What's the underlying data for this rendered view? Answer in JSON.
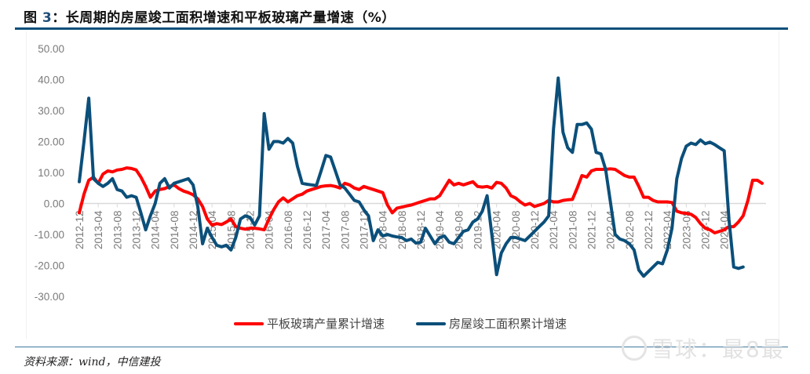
{
  "title": {
    "prefix": "图",
    "number": "3",
    "text": "：长周期的房屋竣工面积增速和平板玻璃产量增速（%）"
  },
  "source": "资料来源：wind，中信建投",
  "watermark": "雪球：最8最",
  "colors": {
    "glass": "#ff0000",
    "housing": "#0b4f7a",
    "title_rule": "#0b4f7a",
    "axis_text": "#7a7a7a",
    "zero_line": "#d9d9d9"
  },
  "legend": [
    {
      "label": "平板玻璃产量累计增速",
      "color": "#ff0000"
    },
    {
      "label": "房屋竣工面积累计增速",
      "color": "#0b4f7a"
    }
  ],
  "chart_data": {
    "type": "line",
    "title": "长周期的房屋竣工面积增速和平板玻璃产量增速（%）",
    "xlabel": "",
    "ylabel": "%",
    "ylim": [
      -30,
      50
    ],
    "yticks": [
      "50.00",
      "40.00",
      "30.00",
      "20.00",
      "10.00",
      "0.00",
      "-10.00",
      "-20.00",
      "-30.00"
    ],
    "xtick_labels": [
      "2012-12",
      "2013-04",
      "2013-08",
      "2013-12",
      "2014-04",
      "2014-08",
      "2014-12",
      "2015-04",
      "2015-08",
      "2015-12",
      "2016-04",
      "2016-08",
      "2016-12",
      "2017-04",
      "2017-08",
      "2017-12",
      "2018-04",
      "2018-08",
      "2018-12",
      "2019-04",
      "2019-08",
      "2019-12",
      "2020-04",
      "2020-08",
      "2020-12",
      "2021-04",
      "2021-08",
      "2021-12",
      "2022-04",
      "2022-08",
      "2022-12",
      "2023-04",
      "2023-08",
      "2023-12",
      "2024-04"
    ],
    "x_start": "2012-12",
    "x_end": "2024-04",
    "frequency": "monthly",
    "grid": false,
    "legend_position": "bottom",
    "series": [
      {
        "name": "平板玻璃产量累计增速",
        "color": "#ff0000",
        "values": [
          -3.0,
          3.0,
          7.5,
          8.5,
          6.5,
          9.5,
          10.5,
          10.2,
          10.8,
          11.0,
          11.5,
          11.3,
          10.8,
          8.5,
          5.5,
          2.0,
          4.0,
          4.5,
          4.8,
          5.5,
          6.0,
          4.8,
          4.0,
          3.5,
          2.8,
          1.5,
          -1.0,
          -5.0,
          -7.0,
          -6.5,
          -6.8,
          -6.0,
          -5.0,
          -7.5,
          -8.0,
          -8.3,
          -8.0,
          -8.0,
          -8.2,
          -8.5,
          -5.0,
          -2.0,
          0.5,
          1.8,
          0.5,
          1.5,
          2.5,
          3.0,
          4.0,
          4.5,
          5.0,
          5.5,
          5.7,
          5.8,
          5.5,
          5.0,
          6.5,
          6.0,
          5.0,
          4.5,
          5.5,
          5.0,
          4.5,
          4.0,
          3.5,
          -0.5,
          -3.0,
          -1.5,
          -1.2,
          -0.8,
          -0.5,
          0.0,
          0.5,
          1.0,
          1.5,
          1.5,
          2.5,
          5.0,
          7.5,
          6.0,
          6.5,
          6.0,
          6.5,
          7.0,
          5.5,
          5.3,
          5.5,
          5.0,
          6.8,
          6.5,
          5.0,
          2.5,
          1.8,
          0.5,
          -0.5,
          0.0,
          -1.0,
          -0.5,
          0.0,
          1.0,
          0.5,
          0.5,
          1.0,
          1.2,
          1.3,
          5.0,
          9.0,
          8.5,
          10.5,
          11.0,
          11.0,
          11.0,
          11.2,
          11.0,
          10.0,
          9.0,
          8.5,
          8.5,
          5.5,
          2.0,
          2.0,
          1.0,
          0.5,
          0.5,
          0.5,
          0.3,
          -2.5,
          -3.0,
          -3.2,
          -3.5,
          -4.5,
          -6.5,
          -8.0,
          -8.5,
          -9.5,
          -9.0,
          -8.5,
          -7.5,
          -7.5,
          -6.0,
          -4.0,
          1.0,
          7.5,
          7.5,
          6.5
        ]
      },
      {
        "name": "房屋竣工面积累计增速",
        "color": "#0b4f7a",
        "values": [
          7.0,
          20.0,
          34.0,
          8.0,
          6.5,
          5.5,
          6.5,
          8.0,
          4.5,
          4.0,
          2.0,
          2.5,
          2.0,
          -3.0,
          -8.5,
          -4.0,
          0.0,
          6.5,
          8.0,
          5.0,
          6.5,
          7.0,
          7.5,
          8.0,
          6.0,
          -1.0,
          -13.0,
          -8.0,
          -11.0,
          -13.5,
          -14.0,
          -13.5,
          -15.0,
          -11.0,
          -5.0,
          -4.0,
          -4.5,
          -7.0,
          -4.0,
          29.0,
          17.5,
          20.0,
          20.0,
          19.5,
          21.0,
          19.5,
          12.0,
          6.5,
          6.2,
          6.0,
          5.8,
          10.5,
          15.5,
          15.0,
          10.5,
          6.0,
          5.0,
          3.0,
          1.0,
          0.5,
          -2.0,
          -4.0,
          -12.0,
          -8.5,
          -10.5,
          -10.0,
          -10.5,
          -10.8,
          -11.0,
          -12.0,
          -11.5,
          -12.8,
          -12.5,
          -8.0,
          -10.5,
          -13.0,
          -11.0,
          -10.5,
          -12.5,
          -13.0,
          -11.0,
          -9.0,
          -8.5,
          -6.0,
          -5.0,
          -2.5,
          2.5,
          -10.0,
          -23.0,
          -16.0,
          -13.0,
          -11.0,
          -11.0,
          -11.5,
          -12.0,
          -10.5,
          -9.0,
          -7.5,
          -6.0,
          -4.0,
          24.0,
          40.5,
          23.0,
          18.0,
          16.5,
          25.5,
          25.5,
          26.0,
          24.0,
          16.5,
          16.0,
          11.0,
          0.5,
          -10.0,
          -11.5,
          -12.0,
          -13.0,
          -15.0,
          -21.5,
          -23.5,
          -22.0,
          -20.5,
          -19.0,
          -19.5,
          -15.0,
          -8.0,
          8.0,
          14.5,
          18.5,
          19.5,
          19.0,
          20.5,
          19.3,
          19.8,
          19.0,
          18.0,
          17.0,
          -5.0,
          -20.5,
          -21.0,
          -20.5
        ]
      }
    ]
  }
}
